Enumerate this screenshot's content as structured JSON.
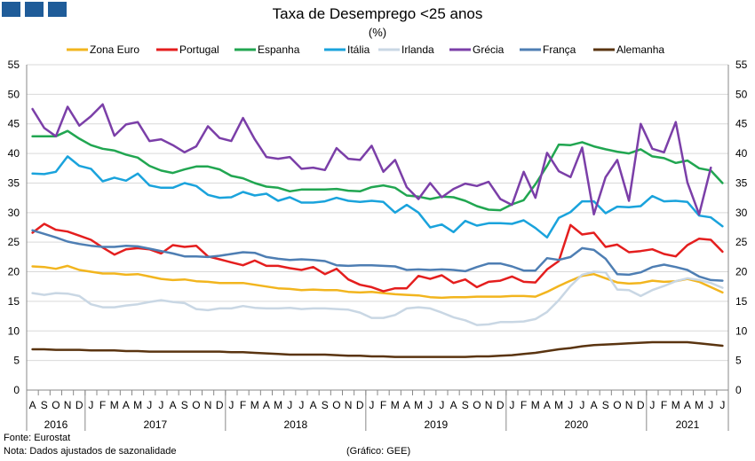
{
  "chart_data": {
    "type": "line",
    "title": "Taxa de Desemprego <25 anos",
    "subtitle": "(%)",
    "ylim": [
      0,
      55
    ],
    "yticks": [
      0,
      5,
      10,
      15,
      20,
      25,
      30,
      35,
      40,
      45,
      50,
      55
    ],
    "grid": true,
    "legend_position": "top",
    "months": [
      "A",
      "S",
      "O",
      "N",
      "D",
      "J",
      "F",
      "M",
      "A",
      "M",
      "J",
      "J",
      "A",
      "S",
      "O",
      "N",
      "D",
      "J",
      "F",
      "M",
      "A",
      "M",
      "J",
      "J",
      "A",
      "S",
      "O",
      "N",
      "D",
      "J",
      "F",
      "M",
      "A",
      "M",
      "J",
      "J",
      "A",
      "S",
      "O",
      "N",
      "D",
      "J",
      "F",
      "M",
      "A",
      "M",
      "J",
      "J",
      "A",
      "S",
      "O",
      "N",
      "D",
      "J",
      "F",
      "M",
      "A",
      "M",
      "J",
      "J"
    ],
    "years": [
      {
        "label": "2016",
        "start": 0,
        "end": 4
      },
      {
        "label": "2017",
        "start": 5,
        "end": 16
      },
      {
        "label": "2018",
        "start": 17,
        "end": 28
      },
      {
        "label": "2019",
        "start": 29,
        "end": 40
      },
      {
        "label": "2020",
        "start": 41,
        "end": 52
      },
      {
        "label": "2021",
        "start": 53,
        "end": 59
      }
    ],
    "series": [
      {
        "name": "Zona Euro",
        "color": "#f2b51e",
        "values": [
          20.9,
          20.8,
          20.5,
          21.0,
          20.3,
          20.0,
          19.7,
          19.7,
          19.5,
          19.6,
          19.2,
          18.8,
          18.6,
          18.7,
          18.4,
          18.3,
          18.1,
          18.1,
          18.1,
          17.8,
          17.5,
          17.2,
          17.1,
          16.9,
          17.0,
          16.9,
          16.9,
          16.6,
          16.5,
          16.6,
          16.4,
          16.2,
          16.1,
          16.0,
          15.7,
          15.6,
          15.7,
          15.7,
          15.8,
          15.8,
          15.8,
          15.9,
          15.9,
          15.8,
          16.6,
          17.6,
          18.5,
          19.3,
          19.6,
          18.9,
          18.2,
          18.0,
          18.1,
          18.5,
          18.3,
          18.4,
          18.8,
          18.3,
          17.4,
          16.5
        ]
      },
      {
        "name": "Portugal",
        "color": "#e41e1e",
        "values": [
          26.6,
          28.1,
          27.1,
          26.8,
          26.1,
          25.4,
          24.1,
          22.9,
          23.8,
          24.0,
          23.8,
          23.1,
          24.5,
          24.2,
          24.4,
          22.6,
          22.1,
          21.6,
          21.1,
          21.9,
          21.0,
          21.0,
          20.6,
          20.3,
          20.8,
          19.6,
          20.5,
          18.7,
          17.8,
          17.4,
          16.7,
          17.2,
          17.2,
          19.3,
          18.8,
          19.4,
          18.1,
          18.7,
          17.4,
          18.3,
          18.5,
          19.2,
          18.3,
          18.2,
          20.4,
          21.8,
          27.9,
          26.3,
          26.6,
          24.2,
          24.6,
          23.3,
          23.5,
          23.8,
          23.0,
          22.6,
          24.5,
          25.6,
          25.4,
          23.4
        ]
      },
      {
        "name": "Espanha",
        "color": "#21a651",
        "values": [
          42.9,
          42.9,
          42.9,
          43.8,
          42.5,
          41.4,
          40.8,
          40.5,
          39.8,
          39.3,
          37.9,
          37.1,
          36.7,
          37.3,
          37.8,
          37.8,
          37.3,
          36.2,
          35.8,
          35.0,
          34.4,
          34.2,
          33.6,
          33.9,
          33.9,
          33.9,
          34.0,
          33.7,
          33.6,
          34.3,
          34.6,
          34.2,
          32.9,
          32.7,
          32.3,
          32.7,
          32.6,
          32.0,
          31.1,
          30.5,
          30.4,
          31.4,
          32.1,
          34.8,
          37.9,
          41.5,
          41.4,
          41.9,
          41.2,
          40.7,
          40.3,
          40.0,
          40.7,
          39.5,
          39.2,
          38.4,
          38.8,
          37.5,
          37.1,
          35.0
        ]
      },
      {
        "name": "Itália",
        "color": "#1aa3dc",
        "values": [
          36.6,
          36.5,
          36.9,
          39.5,
          37.9,
          37.4,
          35.3,
          35.9,
          35.4,
          36.6,
          34.6,
          34.2,
          34.2,
          35.0,
          34.5,
          33.0,
          32.5,
          32.6,
          33.5,
          32.9,
          33.2,
          32.0,
          32.6,
          31.7,
          31.7,
          31.9,
          32.5,
          32.0,
          31.8,
          32.0,
          31.8,
          30.0,
          31.3,
          30.0,
          27.5,
          28.0,
          26.7,
          28.6,
          27.8,
          28.2,
          28.2,
          28.1,
          28.7,
          27.4,
          25.8,
          29.1,
          30.1,
          31.9,
          31.9,
          29.9,
          31.0,
          30.9,
          31.1,
          32.8,
          31.9,
          32.0,
          31.8,
          29.5,
          29.2,
          27.7
        ]
      },
      {
        "name": "Irlanda",
        "color": "#c9d7e4",
        "values": [
          16.4,
          16.1,
          16.4,
          16.3,
          15.9,
          14.5,
          14.0,
          14.0,
          14.3,
          14.5,
          14.9,
          15.2,
          14.9,
          14.7,
          13.7,
          13.5,
          13.8,
          13.8,
          14.2,
          13.9,
          13.8,
          13.8,
          13.9,
          13.7,
          13.8,
          13.8,
          13.7,
          13.6,
          13.1,
          12.2,
          12.2,
          12.7,
          13.8,
          14.0,
          13.8,
          13.1,
          12.3,
          11.8,
          11.0,
          11.1,
          11.5,
          11.5,
          11.6,
          12.0,
          13.2,
          15.2,
          17.6,
          19.5,
          20.0,
          19.9,
          17.0,
          16.9,
          15.9,
          16.9,
          17.6,
          18.4,
          18.9,
          18.6,
          18.1,
          17.3
        ]
      },
      {
        "name": "Grécia",
        "color": "#7b3fa8",
        "values": [
          47.5,
          44.3,
          42.9,
          47.9,
          44.7,
          46.3,
          48.3,
          43.0,
          44.9,
          45.3,
          42.1,
          42.4,
          41.4,
          40.2,
          41.2,
          44.6,
          42.6,
          42.1,
          46.0,
          42.4,
          39.4,
          39.1,
          39.4,
          37.4,
          37.6,
          37.2,
          40.9,
          39.1,
          38.9,
          41.3,
          36.9,
          38.9,
          34.3,
          32.3,
          35.0,
          32.6,
          34.0,
          34.9,
          34.5,
          35.2,
          32.3,
          31.3,
          36.9,
          32.5,
          40.1,
          37.0,
          36.0,
          41.0,
          29.7,
          36.0,
          38.9,
          32.0,
          45.0,
          40.8,
          40.2,
          45.3,
          35.1,
          29.7,
          37.6,
          null
        ]
      },
      {
        "name": "França",
        "color": "#4e7eb3",
        "values": [
          27.0,
          26.4,
          25.8,
          25.1,
          24.7,
          24.4,
          24.2,
          24.2,
          24.4,
          24.3,
          23.9,
          23.5,
          23.1,
          22.6,
          22.6,
          22.5,
          22.7,
          23.0,
          23.3,
          23.2,
          22.5,
          22.2,
          22.0,
          22.1,
          22.0,
          21.8,
          21.1,
          21.0,
          21.1,
          21.1,
          21.0,
          20.9,
          20.3,
          20.4,
          20.3,
          20.4,
          20.3,
          20.1,
          20.8,
          21.4,
          21.4,
          20.9,
          20.2,
          20.2,
          22.3,
          22.0,
          22.5,
          24.0,
          23.7,
          22.2,
          19.6,
          19.5,
          19.9,
          20.8,
          21.2,
          20.8,
          20.3,
          19.2,
          18.6,
          18.5
        ]
      },
      {
        "name": "Alemanha",
        "color": "#5a3410",
        "values": [
          6.9,
          6.9,
          6.8,
          6.8,
          6.8,
          6.7,
          6.7,
          6.7,
          6.6,
          6.6,
          6.5,
          6.5,
          6.5,
          6.5,
          6.5,
          6.5,
          6.5,
          6.4,
          6.4,
          6.3,
          6.2,
          6.1,
          6.0,
          6.0,
          6.0,
          6.0,
          5.9,
          5.8,
          5.8,
          5.7,
          5.7,
          5.6,
          5.6,
          5.6,
          5.6,
          5.6,
          5.6,
          5.6,
          5.7,
          5.7,
          5.8,
          5.9,
          6.1,
          6.3,
          6.6,
          6.9,
          7.1,
          7.4,
          7.6,
          7.7,
          7.8,
          7.9,
          8.0,
          8.1,
          8.1,
          8.1,
          8.1,
          7.9,
          7.7,
          7.5
        ]
      }
    ]
  },
  "footer": {
    "source": "Fonte: Eurostat",
    "note": "Nota: Dados ajustados de sazonalidade",
    "credit": "(Gráfico: GEE)"
  }
}
